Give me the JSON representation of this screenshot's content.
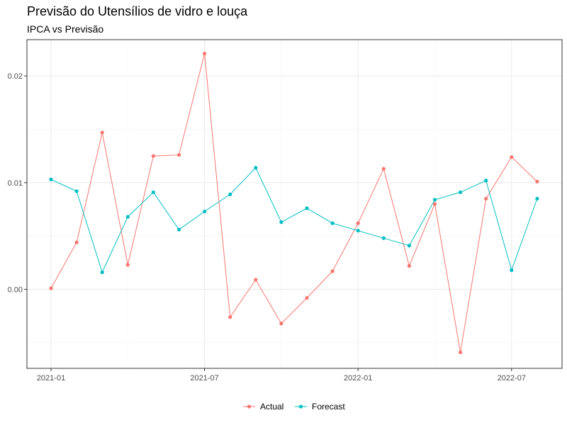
{
  "chart_data": {
    "type": "line",
    "title": "Previsão do Utensílios de vidro e louça",
    "subtitle": "IPCA vs Previsão",
    "x": [
      "2021-01",
      "2021-02",
      "2021-03",
      "2021-04",
      "2021-05",
      "2021-06",
      "2021-07",
      "2021-08",
      "2021-09",
      "2021-10",
      "2021-11",
      "2021-12",
      "2022-01",
      "2022-02",
      "2022-03",
      "2022-04",
      "2022-05",
      "2022-06",
      "2022-07",
      "2022-08"
    ],
    "x_tick_labels": [
      "2021-01",
      "2021-07",
      "2022-01",
      "2022-07"
    ],
    "y_tick_labels": [
      "0.00",
      "0.01",
      "0.02"
    ],
    "y_ticks": [
      0.0,
      0.01,
      0.02
    ],
    "ylim": [
      -0.0074,
      0.0234
    ],
    "grid": true,
    "legend_position": "bottom",
    "series": [
      {
        "name": "Actual",
        "color": "#F8766D",
        "values": [
          0.0001,
          0.0044,
          0.0147,
          0.0023,
          0.0125,
          0.0126,
          0.0221,
          -0.0026,
          0.0009,
          -0.0032,
          -0.0008,
          0.0017,
          0.0062,
          0.0113,
          0.0022,
          0.008,
          -0.0059,
          0.0085,
          0.0124,
          0.0101
        ]
      },
      {
        "name": "Forecast",
        "color": "#00BFC4",
        "values": [
          0.0103,
          0.0092,
          0.0016,
          0.0068,
          0.0091,
          0.0056,
          0.0073,
          0.0089,
          0.0114,
          0.0063,
          0.0076,
          0.0062,
          0.0055,
          0.0048,
          0.0041,
          0.0084,
          0.0091,
          0.0102,
          0.0018,
          0.0085
        ]
      }
    ]
  }
}
